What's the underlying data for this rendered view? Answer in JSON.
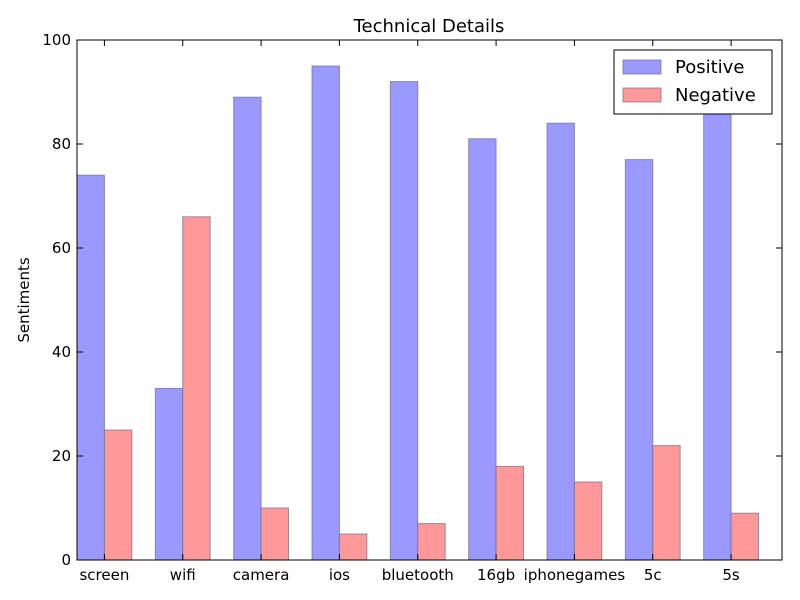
{
  "chart_data": {
    "type": "bar",
    "title": "Technical Details",
    "xlabel": "",
    "ylabel": "Sentiments",
    "ylim": [
      0,
      100
    ],
    "yticks": [
      0,
      20,
      40,
      60,
      80,
      100
    ],
    "categories": [
      "screen",
      "wifi",
      "camera",
      "ios",
      "bluetooth",
      "16gb",
      "iphonegames",
      "5c",
      "5s"
    ],
    "series": [
      {
        "name": "Positive",
        "color": "#9999ff",
        "values": [
          74,
          33,
          89,
          95,
          92,
          81,
          84,
          77,
          86
        ]
      },
      {
        "name": "Negative",
        "color": "#ff9999",
        "values": [
          25,
          66,
          10,
          5,
          7,
          18,
          15,
          22,
          9
        ]
      }
    ],
    "legend_position": "top-right",
    "grid": false
  }
}
